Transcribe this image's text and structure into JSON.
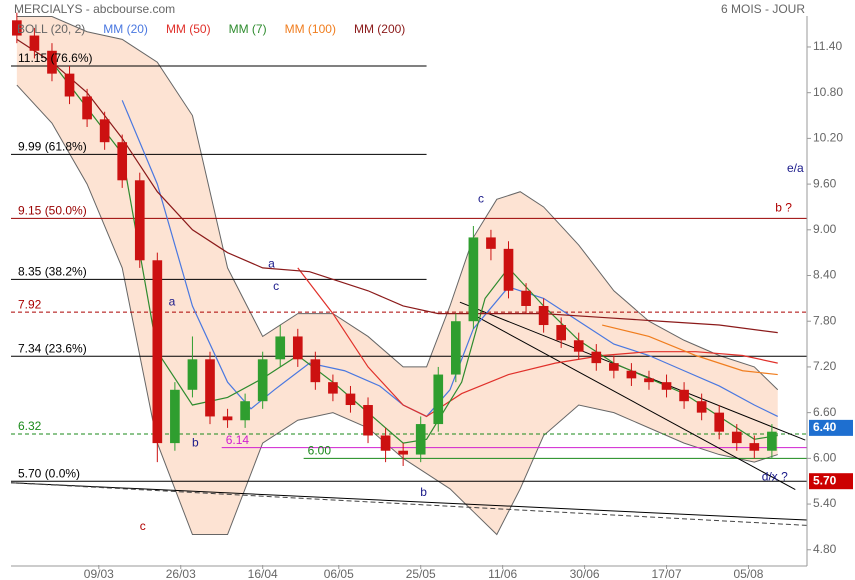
{
  "chart_data": {
    "type": "candlestick",
    "title": "MERCIALYS - abcbourse.com",
    "subtitle": "6 MOIS - JOUR",
    "xlim": [
      -1,
      135
    ],
    "ylim": [
      4.6,
      11.8
    ],
    "xticks": [
      {
        "value": 14,
        "label": "09/03"
      },
      {
        "value": 28,
        "label": "26/03"
      },
      {
        "value": 42,
        "label": "16/04"
      },
      {
        "value": 55,
        "label": "06/05"
      },
      {
        "value": 69,
        "label": "25/05"
      },
      {
        "value": 83,
        "label": "11/06"
      },
      {
        "value": 97,
        "label": "30/06"
      },
      {
        "value": 111,
        "label": "17/07"
      },
      {
        "value": 125,
        "label": "05/08"
      }
    ],
    "yticks": [
      {
        "value": 4.8,
        "label": "4.80"
      },
      {
        "value": 5.4,
        "label": "5.40"
      },
      {
        "value": 6,
        "label": "6.00"
      },
      {
        "value": 6.6,
        "label": "6.60"
      },
      {
        "value": 7.2,
        "label": "7.20"
      },
      {
        "value": 7.8,
        "label": "7.80"
      },
      {
        "value": 8.4,
        "label": "8.40"
      },
      {
        "value": 9,
        "label": "9.00"
      },
      {
        "value": 9.6,
        "label": "9.60"
      },
      {
        "value": 10.2,
        "label": "10.20"
      },
      {
        "value": 10.8,
        "label": "10.80"
      },
      {
        "value": 11.4,
        "label": "11.40"
      }
    ],
    "up_color": "#2f9e2f",
    "down_color": "#cc1111",
    "candles": {
      "x": [
        0,
        3,
        6,
        9,
        12,
        15,
        18,
        21,
        24,
        27,
        30,
        33,
        36,
        39,
        42,
        45,
        48,
        51,
        54,
        57,
        60,
        63,
        66,
        69,
        72,
        75,
        78,
        81,
        84,
        87,
        90,
        93,
        96,
        99,
        102,
        105,
        108,
        111,
        114,
        117,
        120,
        123,
        126,
        129
      ],
      "open": [
        11.75,
        11.55,
        11.35,
        11.05,
        10.75,
        10.45,
        10.15,
        9.65,
        8.6,
        6.2,
        6.9,
        7.3,
        6.55,
        6.5,
        6.75,
        7.3,
        7.6,
        7.3,
        7.0,
        6.85,
        6.7,
        6.3,
        6.1,
        6.05,
        6.45,
        7.1,
        7.8,
        8.9,
        8.75,
        8.2,
        8.0,
        7.75,
        7.55,
        7.4,
        7.25,
        7.15,
        7.05,
        7.0,
        6.9,
        6.75,
        6.6,
        6.35,
        6.2,
        6.1
      ],
      "high": [
        11.85,
        11.65,
        11.45,
        11.15,
        10.85,
        10.55,
        10.25,
        9.75,
        8.7,
        7.0,
        7.6,
        7.4,
        6.65,
        6.85,
        7.4,
        7.75,
        7.7,
        7.4,
        7.1,
        6.95,
        6.8,
        6.4,
        6.2,
        6.55,
        7.2,
        7.9,
        9.05,
        9.0,
        8.85,
        8.3,
        8.1,
        7.85,
        7.65,
        7.5,
        7.35,
        7.25,
        7.15,
        7.1,
        7.0,
        6.85,
        6.7,
        6.45,
        6.3,
        6.45
      ],
      "low": [
        11.45,
        11.25,
        10.95,
        10.65,
        10.35,
        10.05,
        9.55,
        8.5,
        5.95,
        6.1,
        6.8,
        6.45,
        6.4,
        6.4,
        6.65,
        7.2,
        7.2,
        6.9,
        6.75,
        6.6,
        6.2,
        5.95,
        5.9,
        5.95,
        6.35,
        7.0,
        7.7,
        8.6,
        8.1,
        7.9,
        7.65,
        7.45,
        7.3,
        7.15,
        7.05,
        6.95,
        6.9,
        6.8,
        6.65,
        6.5,
        6.25,
        6.1,
        6.0,
        6.0
      ],
      "close": [
        11.55,
        11.35,
        11.05,
        10.75,
        10.45,
        10.15,
        9.65,
        8.6,
        6.2,
        6.9,
        7.3,
        6.55,
        6.5,
        6.75,
        7.3,
        7.6,
        7.3,
        7.0,
        6.85,
        6.7,
        6.3,
        6.1,
        6.05,
        6.45,
        7.1,
        7.8,
        8.9,
        8.75,
        8.2,
        8.0,
        7.75,
        7.55,
        7.4,
        7.25,
        7.15,
        7.05,
        7.0,
        6.9,
        6.75,
        6.6,
        6.35,
        6.2,
        6.1,
        6.35
      ]
    },
    "bands": {
      "name": "BOLL (20, 2)",
      "color": "#666666",
      "fill": "#fde3d3",
      "x": [
        0,
        6,
        12,
        18,
        24,
        30,
        36,
        42,
        48,
        54,
        60,
        66,
        70,
        74,
        78,
        82,
        86,
        90,
        96,
        102,
        108,
        114,
        120,
        126,
        130
      ],
      "upper": [
        11.8,
        11.8,
        11.6,
        11.5,
        11.2,
        10.5,
        8.5,
        7.6,
        7.9,
        7.9,
        7.6,
        7.2,
        7.2,
        8.0,
        8.9,
        9.4,
        9.5,
        9.3,
        8.8,
        8.2,
        7.8,
        7.55,
        7.35,
        7.2,
        6.9
      ],
      "lower": [
        10.9,
        10.4,
        9.6,
        8.5,
        6.2,
        5.0,
        5.0,
        6.2,
        6.5,
        6.6,
        6.4,
        6.0,
        5.8,
        5.6,
        5.3,
        5.0,
        5.6,
        6.3,
        6.7,
        6.6,
        6.4,
        6.2,
        6.05,
        5.95,
        6.05
      ]
    },
    "series": [
      {
        "name": "MM (20)",
        "color": "#4a78e0",
        "x": [
          18,
          24,
          30,
          36,
          40,
          44,
          50,
          56,
          62,
          66,
          70,
          74,
          78,
          84,
          90,
          96,
          102,
          108,
          114,
          120,
          126,
          130
        ],
        "values": [
          10.7,
          9.6,
          8.0,
          7.0,
          6.65,
          6.9,
          7.25,
          7.15,
          6.95,
          6.7,
          6.55,
          6.9,
          7.7,
          8.25,
          8.1,
          7.8,
          7.5,
          7.35,
          7.15,
          6.95,
          6.7,
          6.55
        ]
      },
      {
        "name": "MM (50)",
        "color": "#e0302a",
        "x": [
          48,
          54,
          60,
          66,
          70,
          76,
          84,
          92,
          100,
          108,
          116,
          124,
          130
        ],
        "values": [
          8.5,
          7.9,
          7.2,
          6.7,
          6.55,
          6.85,
          7.1,
          7.25,
          7.35,
          7.4,
          7.4,
          7.35,
          7.25
        ]
      },
      {
        "name": "MM (7)",
        "color": "#2e8b2e",
        "x": [
          6,
          12,
          18,
          24,
          30,
          36,
          42,
          48,
          54,
          60,
          66,
          70,
          76,
          80,
          84,
          90,
          96,
          102,
          108,
          114,
          120,
          126,
          130
        ],
        "values": [
          11.2,
          10.6,
          10.0,
          7.4,
          6.7,
          6.8,
          7.05,
          7.35,
          7.0,
          6.6,
          6.2,
          6.25,
          7.0,
          8.1,
          8.5,
          8.0,
          7.55,
          7.25,
          7.05,
          6.85,
          6.55,
          6.25,
          6.3
        ]
      },
      {
        "name": "MM (100)",
        "color": "#f07d1e",
        "x": [
          100,
          108,
          116,
          124,
          130
        ],
        "values": [
          7.75,
          7.6,
          7.35,
          7.15,
          7.1
        ]
      },
      {
        "name": "MM (200)",
        "color": "#8b1a1a",
        "x": [
          0,
          6,
          12,
          18,
          24,
          30,
          36,
          42,
          50,
          60,
          66,
          72,
          80,
          90,
          100,
          110,
          120,
          130
        ],
        "values": [
          11.5,
          11.2,
          10.8,
          10.2,
          9.5,
          9.0,
          8.7,
          8.5,
          8.45,
          8.2,
          8.0,
          7.9,
          7.9,
          7.9,
          7.85,
          7.8,
          7.75,
          7.65
        ]
      }
    ],
    "levels": [
      {
        "value": 11.15,
        "label": "11.15 (76.6%)",
        "color": "#000000",
        "dashed": false,
        "x": [
          -1,
          70
        ]
      },
      {
        "value": 9.99,
        "label": "9.99 (61.8%)",
        "color": "#000000",
        "dashed": false,
        "x": [
          -1,
          70
        ]
      },
      {
        "value": 9.15,
        "label": "9.15 (50.0%)",
        "color": "#990000",
        "dashed": false,
        "x": [
          -1,
          135
        ]
      },
      {
        "value": 8.35,
        "label": "8.35 (38.2%)",
        "color": "#000000",
        "dashed": false,
        "x": [
          -1,
          70
        ]
      },
      {
        "value": 7.92,
        "label": "7.92",
        "color": "#aa0000",
        "dashed": true,
        "x": [
          -1,
          135
        ]
      },
      {
        "value": 7.34,
        "label": "7.34 (23.6%)",
        "color": "#000000",
        "dashed": false,
        "x": [
          -1,
          135
        ]
      },
      {
        "value": 6.32,
        "label": "6.32",
        "color": "#1a8a1a",
        "dashed": true,
        "x": [
          -1,
          135
        ]
      },
      {
        "value": 6.14,
        "label": "6.14",
        "color": "#d020d0",
        "dashed": false,
        "x": [
          35,
          135
        ]
      },
      {
        "value": 6,
        "label": "6.00",
        "color": "#1a8a1a",
        "dashed": false,
        "x": [
          49,
          135
        ]
      },
      {
        "value": 5.7,
        "label": "5.70 (0.0%)",
        "color": "#000000",
        "dashed": false,
        "x": [
          -1,
          135
        ]
      }
    ],
    "trendlines": [
      {
        "x": [
          -1,
          135
        ],
        "y": [
          5.68,
          5.19
        ],
        "color": "#000000",
        "dashed": false
      },
      {
        "x": [
          -1,
          135
        ],
        "y": [
          5.68,
          5.12
        ],
        "color": "#444444",
        "dashed": true
      },
      {
        "x": [
          75.7,
          134.7
        ],
        "y": [
          8.05,
          6.24
        ],
        "color": "#000000",
        "dashed": false
      },
      {
        "x": [
          77.4,
          133
        ],
        "y": [
          7.91,
          5.59
        ],
        "color": "#000000",
        "dashed": false
      }
    ],
    "price_tags": [
      {
        "value": 6.4,
        "label": "6.40",
        "color": "#1e6fd0"
      },
      {
        "value": 5.7,
        "label": "5.70",
        "color": "#cc0000"
      }
    ],
    "annotations": [
      {
        "text": "c",
        "x": 21.5,
        "y": 5.1,
        "color": "#b00000",
        "size": 18
      },
      {
        "text": "a",
        "x": 26.5,
        "y": 8.05,
        "color": "#1a1a8a",
        "size": 12
      },
      {
        "text": "b",
        "x": 30.5,
        "y": 6.2,
        "color": "#1a1a8a",
        "size": 12
      },
      {
        "text": "a",
        "x": 43.5,
        "y": 8.55,
        "color": "#1a1a8a",
        "size": 16
      },
      {
        "text": "c",
        "x": 44.3,
        "y": 8.25,
        "color": "#1a1a8a",
        "size": 12
      },
      {
        "text": "b",
        "x": 69.5,
        "y": 5.55,
        "color": "#1a1a8a",
        "size": 16
      },
      {
        "text": "c",
        "x": 79.3,
        "y": 9.4,
        "color": "#1a1a8a",
        "size": 16
      },
      {
        "text": "e/a",
        "x": 133,
        "y": 9.8,
        "color": "#1a1a8a",
        "size": 16
      },
      {
        "text": "b ?",
        "x": 131,
        "y": 9.28,
        "color": "#b00000",
        "size": 12
      },
      {
        "text": "d/x ?",
        "x": 129.5,
        "y": 5.75,
        "color": "#1a1a8a",
        "size": 16
      }
    ]
  }
}
